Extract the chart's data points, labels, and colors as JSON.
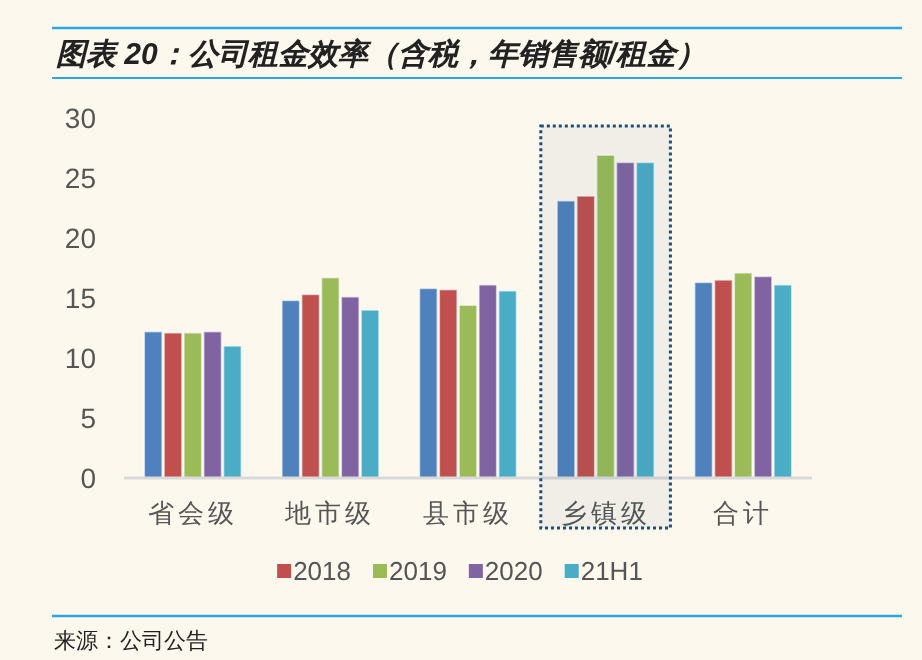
{
  "chart_data": {
    "type": "bar",
    "title": "图表 20：公司租金效率（含税，年销售额/租金）",
    "categories": [
      "省会级",
      "地市级",
      "县市级",
      "乡镇级",
      "合计"
    ],
    "series": [
      {
        "color": "#4f81bd",
        "values": [
          12.2,
          14.8,
          15.8,
          23.1,
          16.3
        ]
      },
      {
        "name": "2018",
        "color": "#c0504d",
        "values": [
          12.1,
          15.3,
          15.7,
          23.5,
          16.5
        ]
      },
      {
        "name": "2019",
        "color": "#9bbb59",
        "values": [
          12.1,
          16.7,
          14.4,
          26.9,
          17.1
        ]
      },
      {
        "name": "2020",
        "color": "#8064a2",
        "values": [
          12.2,
          15.1,
          16.1,
          26.3,
          16.8
        ]
      },
      {
        "name": "21H1",
        "color": "#4bacc6",
        "values": [
          11.0,
          14.0,
          15.6,
          26.3,
          16.1
        ]
      }
    ],
    "ylim": [
      0,
      30
    ],
    "yticks": [
      0,
      5,
      10,
      15,
      20,
      25,
      30
    ],
    "grid": false,
    "legend": "bottom",
    "bands": [
      {
        "axis": "x",
        "from": "乡镇级",
        "to": "乡镇级",
        "color": "#1f4e79"
      }
    ],
    "annotations": [
      "来源：公司公告"
    ]
  }
}
